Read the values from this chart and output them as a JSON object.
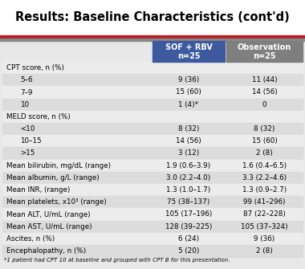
{
  "title": "Results: Baseline Characteristics (cont'd)",
  "col1_header_line1": "SOF + RBV",
  "col1_header_line2": "n=25",
  "col2_header_line1": "Observation",
  "col2_header_line2": "n=25",
  "col1_header_bg": "#3d5a9e",
  "col2_header_bg": "#7f7f7f",
  "header_text_color": "#ffffff",
  "red_bar_color": "#b52025",
  "gray_bar_color": "#888888",
  "bg_color": "#e8e8e8",
  "title_bg": "#ffffff",
  "row_bg_odd": "#dcdcdc",
  "row_bg_even": "#ececec",
  "rows": [
    {
      "label": "CPT score, n (%)",
      "v1": "",
      "v2": "",
      "indent": false
    },
    {
      "label": "5–6",
      "v1": "9 (36)",
      "v2": "11 (44)",
      "indent": true
    },
    {
      "label": "7–9",
      "v1": "15 (60)",
      "v2": "14 (56)",
      "indent": true
    },
    {
      "label": "10",
      "v1": "1 (4)*",
      "v2": "0",
      "indent": true
    },
    {
      "label": "MELD score, n (%)",
      "v1": "",
      "v2": "",
      "indent": false
    },
    {
      "label": "<10",
      "v1": "8 (32)",
      "v2": "8 (32)",
      "indent": true
    },
    {
      "label": "10–15",
      "v1": "14 (56)",
      "v2": "15 (60)",
      "indent": true
    },
    {
      "label": ">15",
      "v1": "3 (12)",
      "v2": "2 (8)",
      "indent": true
    },
    {
      "label": "Mean bilirubin, mg/dL (range)",
      "v1": "1.9 (0.6–3.9)",
      "v2": "1.6 (0.4–6.5)",
      "indent": false
    },
    {
      "label": "Mean albumin, g/L (range)",
      "v1": "3.0 (2.2–4.0)",
      "v2": "3.3 (2.2–4.6)",
      "indent": false
    },
    {
      "label": "Mean INR, (range)",
      "v1": "1.3 (1.0–1.7)",
      "v2": "1.3 (0.9–2.7)",
      "indent": false
    },
    {
      "label": "Mean platelets, x10³ (range)",
      "v1": "75 (38–137)",
      "v2": "99 (41–296)",
      "indent": false
    },
    {
      "label": "Mean ALT, U/mL (range)",
      "v1": "105 (17–196)",
      "v2": "87 (22–228)",
      "indent": false
    },
    {
      "label": "Mean AST, U/mL (range)",
      "v1": "128 (39–225)",
      "v2": "105 (37–324)",
      "indent": false
    },
    {
      "label": "Ascites, n (%)",
      "v1": "6 (24)",
      "v2": "9 (36)",
      "indent": false
    },
    {
      "label": "Encephalopathy, n (%)",
      "v1": "5 (20)",
      "v2": "2 (8)",
      "indent": false
    }
  ],
  "footnote": "*1 patient had CPT 10 at baseline and grouped with CPT B for this presentation.",
  "figw": 3.8,
  "figh": 3.35,
  "dpi": 100
}
